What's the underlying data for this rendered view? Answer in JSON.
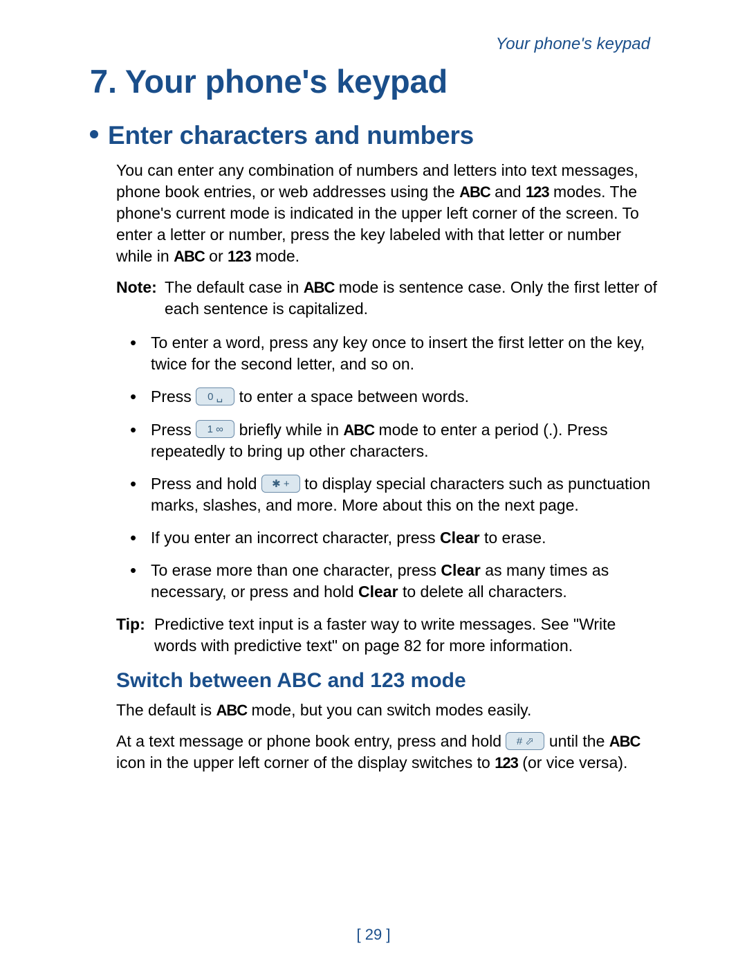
{
  "colors": {
    "heading": "#1a4e8a",
    "text": "#000000",
    "key_bg": "#dbe7ef",
    "key_border": "#6a8aa8",
    "background": "#ffffff"
  },
  "typography": {
    "running_head_pt": 24,
    "chapter_title_pt": 47,
    "section_title_pt": 37,
    "subsection_title_pt": 30,
    "body_pt": 23
  },
  "running_head": "Your phone's keypad",
  "chapter": {
    "number": "7.",
    "title": "Your phone's keypad"
  },
  "section": {
    "title": "Enter characters and numbers"
  },
  "intro": {
    "pre_abc": "You can enter any combination of numbers and letters into text messages, phone book entries, or web addresses using the ",
    "abc1": "ABC",
    "mid1": " and ",
    "num1": "123",
    "post1": " modes. The phone's current mode is indicated in the upper left corner of the screen. To enter a letter or number, press the key labeled with that letter or number while in ",
    "abc2": "ABC",
    "mid2": " or ",
    "num2": "123",
    "post2": " mode."
  },
  "note": {
    "label": "Note:",
    "pre": " The default case in ",
    "abc": "ABC",
    "post": " mode is sentence case. Only the first letter of each sentence is capitalized."
  },
  "items": [
    {
      "text": "To enter a word, press any key once to insert the first letter on the key, twice for the second letter, and so on."
    },
    {
      "pre": "Press  ",
      "key": "0 ␣",
      "post": "  to enter a space between words."
    },
    {
      "pre": "Press  ",
      "key": "1 ∞",
      "mid": "  briefly while in ",
      "abc": "ABC",
      "post": " mode to enter a period (.). Press repeatedly to bring up other characters."
    },
    {
      "pre": "Press and hold  ",
      "key": "✱ +",
      "post": "  to display special characters such as punctuation marks, slashes, and more. More about this on the next page."
    },
    {
      "pre": "If you enter an incorrect character, press ",
      "bold1": "Clear",
      "post": " to erase."
    },
    {
      "pre": "To erase more than one character, press ",
      "bold1": "Clear",
      "mid": " as many times as necessary, or press and hold ",
      "bold2": "Clear",
      "post": " to delete all characters."
    }
  ],
  "tip": {
    "label": "Tip:",
    "text": " Predictive text input is a faster way to write messages. See \"Write words with predictive text\" on page 82 for more information."
  },
  "subsection": {
    "title": "Switch between ABC and 123 mode"
  },
  "sub_p1": {
    "pre": "The default is ",
    "abc": "ABC",
    "post": " mode, but you can switch modes easily."
  },
  "sub_p2": {
    "pre": "At a text message or phone book entry, press and hold  ",
    "key": "# ⬀",
    "mid": "  until the ",
    "abc": "ABC",
    "mid2": " icon in the upper left corner of the display switches to ",
    "num": "123",
    "post": " (or vice versa)."
  },
  "page_number": "[ 29 ]"
}
